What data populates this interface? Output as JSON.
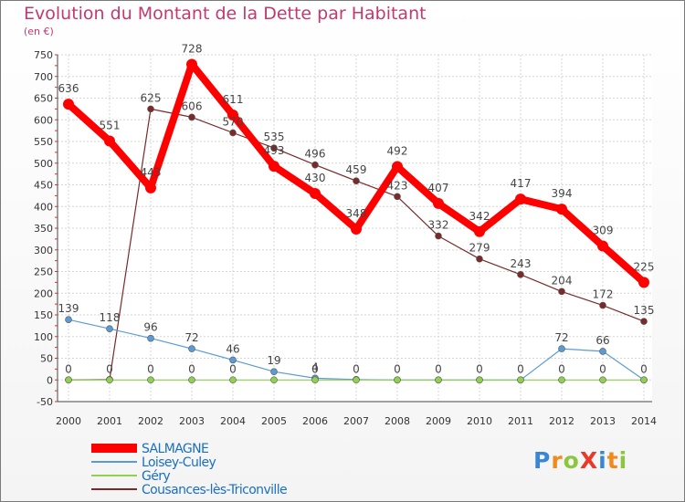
{
  "title": "Evolution du Montant de la Dette par Habitant",
  "subtitle": "(en €)",
  "logo": "ProXiti",
  "chart_data": {
    "type": "line",
    "title": "Evolution du Montant de la Dette par Habitant",
    "ylabel": "(en €)",
    "xlabel": "",
    "x": [
      "2000",
      "2001",
      "2002",
      "2003",
      "2004",
      "2005",
      "2006",
      "2007",
      "2008",
      "2009",
      "2010",
      "2011",
      "2012",
      "2013",
      "2014"
    ],
    "ylim": [
      -50,
      750
    ],
    "yticks": [
      -50,
      0,
      50,
      100,
      150,
      200,
      250,
      300,
      350,
      400,
      450,
      500,
      550,
      600,
      650,
      700,
      750
    ],
    "grid": true,
    "legend_position": "bottom-left",
    "series": [
      {
        "name": "SALMAGNE",
        "color": "#ff0000",
        "values": [
          636,
          551,
          443,
          728,
          611,
          493,
          430,
          348,
          492,
          407,
          342,
          417,
          394,
          309,
          225
        ]
      },
      {
        "name": "Loisey-Culey",
        "color": "#5b9bd5",
        "values": [
          139,
          118,
          96,
          72,
          46,
          19,
          4,
          1,
          0,
          0,
          0,
          0,
          72,
          66,
          0
        ]
      },
      {
        "name": "Géry",
        "color": "#8fd14f",
        "values": [
          0,
          0,
          0,
          0,
          0,
          0,
          0,
          0,
          0,
          0,
          0,
          0,
          0,
          0,
          0
        ]
      },
      {
        "name": "Cousances-lès-Triconville",
        "color": "#7a2a2a",
        "values": [
          0,
          1,
          625,
          606,
          570,
          535,
          496,
          459,
          423,
          332,
          279,
          243,
          204,
          172,
          135
        ]
      }
    ],
    "data_labels": [
      {
        "series": 0,
        "labels": [
          "636",
          "551",
          "443",
          "728",
          "611",
          "493",
          "430",
          "348",
          "492",
          "407",
          "342",
          "417",
          "394",
          "309",
          "225"
        ]
      },
      {
        "series": 1,
        "labels": [
          "139",
          "118",
          "96",
          "72",
          "46",
          "19",
          "4",
          "",
          "",
          "",
          "",
          "",
          "72",
          "66",
          ""
        ]
      },
      {
        "series": 2,
        "labels": [
          "0",
          "0",
          "0",
          "0",
          "0",
          "",
          "0",
          "0",
          "0",
          "0",
          "0",
          "0",
          "0",
          "0",
          "0"
        ]
      },
      {
        "series": 3,
        "labels": [
          "",
          "",
          "625",
          "606",
          "570",
          "535",
          "496",
          "459",
          "423",
          "332",
          "279",
          "243",
          "204",
          "172",
          "135"
        ]
      }
    ]
  }
}
